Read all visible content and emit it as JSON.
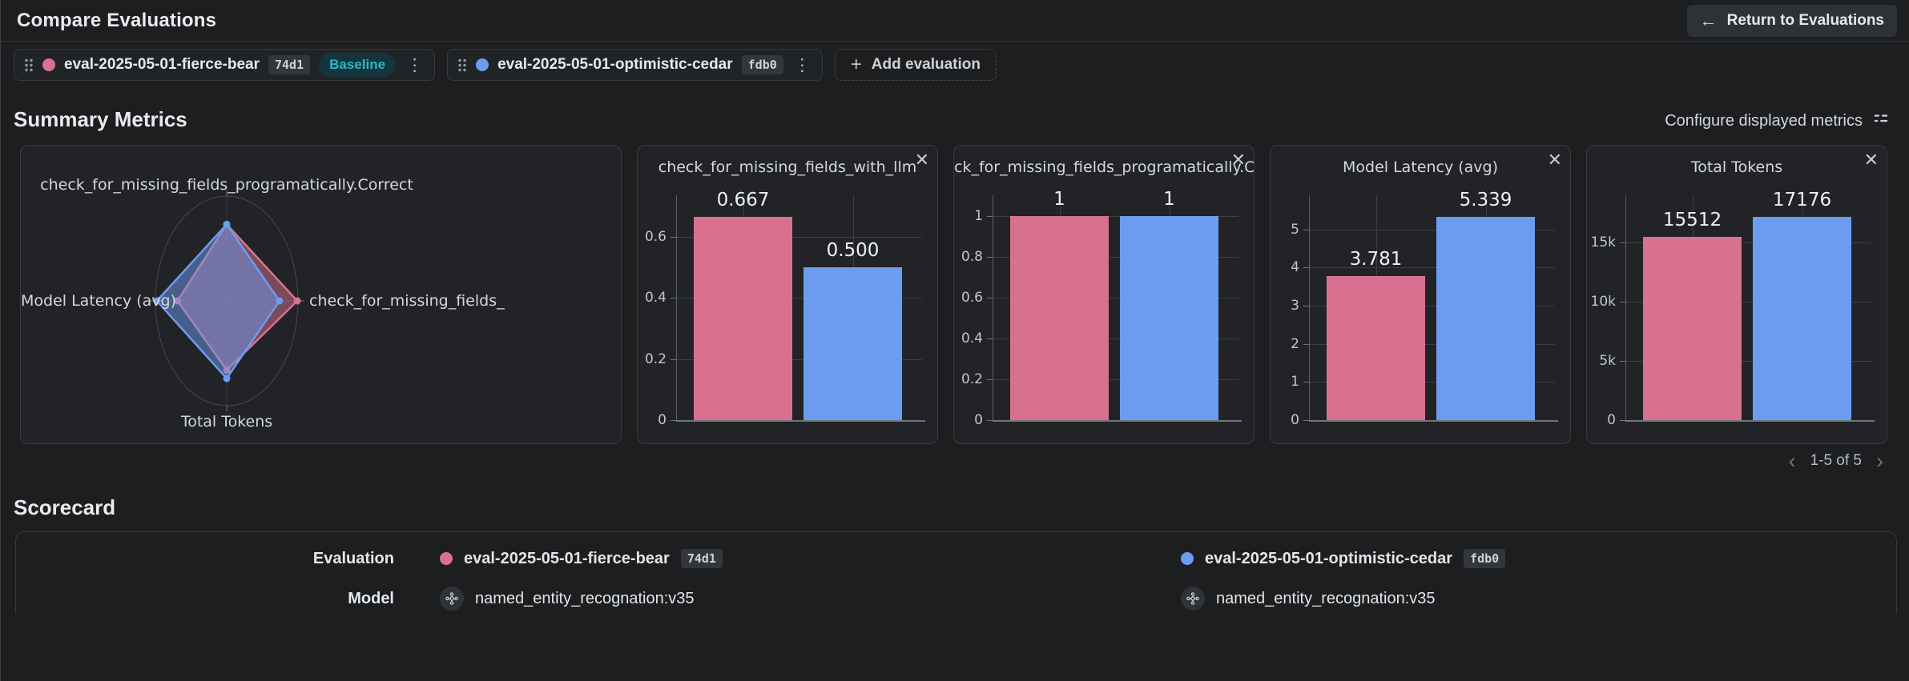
{
  "header": {
    "title": "Compare Evaluations",
    "return_label": "Return to Evaluations"
  },
  "eval_bar": {
    "evaluations": [
      {
        "name": "eval-2025-05-01-fierce-bear",
        "id": "74d1",
        "badge": "Baseline",
        "color": "#d8718f"
      },
      {
        "name": "eval-2025-05-01-optimistic-cedar",
        "id": "fdb0",
        "color": "#6b9cf0"
      }
    ],
    "add_label": "Add evaluation"
  },
  "summary": {
    "title": "Summary Metrics",
    "configure_label": "Configure displayed metrics",
    "pagination": "1-5 of 5"
  },
  "colors": {
    "pink": "#d8718f",
    "blue": "#6b9cf0"
  },
  "chart_data": [
    {
      "type": "radar",
      "axes": [
        "check_for_missing_fields_programatically.Correct",
        "check_for_missing_fields_",
        "Total Tokens",
        "Model Latency (avg)"
      ],
      "axis_order": "top, right, bottom, left",
      "series": [
        {
          "name": "eval-2025-05-01-fierce-bear",
          "color": "#d8718f",
          "values": [
            1,
            0.667,
            15512,
            3.781
          ],
          "radii": [
            0.73,
            0.99,
            0.66,
            0.69
          ]
        },
        {
          "name": "eval-2025-05-01-optimistic-cedar",
          "color": "#6b9cf0",
          "values": [
            1,
            0.5,
            17176,
            5.339
          ],
          "radii": [
            0.73,
            0.74,
            0.74,
            0.98
          ]
        }
      ],
      "grid": "single outer ring, cross axes"
    },
    {
      "type": "bar",
      "title": "check_for_missing_fields_with_llm",
      "categories": [
        "eval-2025-05-01-fierce-bear",
        "eval-2025-05-01-optimistic-cedar"
      ],
      "values": [
        0.667,
        0.5
      ],
      "value_labels": [
        "0.667",
        "0.500"
      ],
      "yticks": [
        0,
        0.2,
        0.4,
        0.6
      ],
      "ytick_labels": [
        "0",
        "0.2",
        "0.4",
        "0.6"
      ],
      "ylim": [
        0,
        0.737
      ]
    },
    {
      "type": "bar",
      "title": "ck_for_missing_fields_programatically.C",
      "categories": [
        "eval-2025-05-01-fierce-bear",
        "eval-2025-05-01-optimistic-cedar"
      ],
      "values": [
        1,
        1
      ],
      "value_labels": [
        "1",
        "1"
      ],
      "yticks": [
        0,
        0.2,
        0.4,
        0.6,
        0.8,
        1
      ],
      "ytick_labels": [
        "0",
        "0.2",
        "0.4",
        "0.6",
        "0.8",
        "1"
      ],
      "ylim": [
        0,
        1.1
      ]
    },
    {
      "type": "bar",
      "title": "Model Latency (avg)",
      "categories": [
        "eval-2025-05-01-fierce-bear",
        "eval-2025-05-01-optimistic-cedar"
      ],
      "values": [
        3.781,
        5.339
      ],
      "value_labels": [
        "3.781",
        "5.339"
      ],
      "yticks": [
        0,
        1,
        2,
        3,
        4,
        5
      ],
      "ytick_labels": [
        "0",
        "1",
        "2",
        "3",
        "4",
        "5"
      ],
      "ylim": [
        0,
        5.9
      ]
    },
    {
      "type": "bar",
      "title": "Total Tokens",
      "categories": [
        "eval-2025-05-01-fierce-bear",
        "eval-2025-05-01-optimistic-cedar"
      ],
      "values": [
        15512,
        17176
      ],
      "value_labels": [
        "15512",
        "17176"
      ],
      "yticks": [
        0,
        5000,
        10000,
        15000
      ],
      "ytick_labels": [
        "0",
        "5k",
        "10k",
        "15k"
      ],
      "ylim": [
        0,
        19000
      ]
    }
  ],
  "scorecard": {
    "title": "Scorecard",
    "rows": [
      {
        "label": "Evaluation",
        "values": [
          {
            "name": "eval-2025-05-01-fierce-bear",
            "id": "74d1"
          },
          {
            "name": "eval-2025-05-01-optimistic-cedar",
            "id": "fdb0"
          }
        ]
      },
      {
        "label": "Model",
        "values": [
          {
            "name": "named_entity_recognation:v35"
          },
          {
            "name": "named_entity_recognation:v35"
          }
        ]
      }
    ]
  }
}
